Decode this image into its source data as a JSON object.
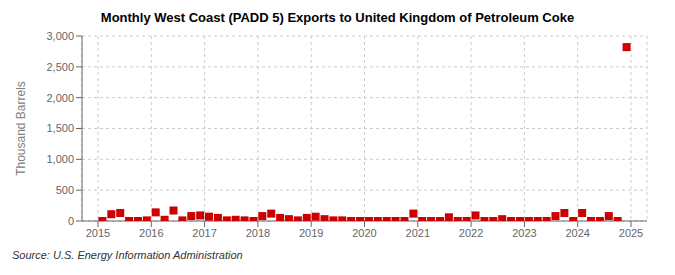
{
  "chart_data": {
    "type": "scatter",
    "title": "Monthly West Coast (PADD 5) Exports to United Kingdom of Petroleum Coke",
    "ylabel": "Thousand Barrels",
    "annotation": "Source: U.S. Energy Information Administration",
    "color": "#cc0000",
    "marker": "square",
    "grid": true,
    "xlim": [
      2014.7,
      2025.3
    ],
    "xticks": [
      2015,
      2016,
      2017,
      2018,
      2019,
      2020,
      2021,
      2022,
      2023,
      2024,
      2025
    ],
    "ylim": [
      0,
      3000
    ],
    "yticks": [
      0,
      500,
      {
        "value": 1000,
        "label": "1,000"
      },
      {
        "value": 1500,
        "label": "1,500"
      },
      {
        "value": 2000,
        "label": "2,000"
      },
      {
        "value": 2500,
        "label": "2,500"
      },
      {
        "value": 3000,
        "label": "3,000"
      }
    ],
    "x": [
      2015.083,
      2015.25,
      2015.417,
      2015.583,
      2015.75,
      2015.917,
      2016.083,
      2016.25,
      2016.417,
      2016.583,
      2016.75,
      2016.917,
      2017.083,
      2017.25,
      2017.417,
      2017.583,
      2017.75,
      2017.917,
      2018.083,
      2018.25,
      2018.417,
      2018.583,
      2018.75,
      2018.917,
      2019.083,
      2019.25,
      2019.417,
      2019.583,
      2019.75,
      2019.917,
      2020.083,
      2020.25,
      2020.417,
      2020.583,
      2020.75,
      2020.917,
      2021.083,
      2021.25,
      2021.417,
      2021.583,
      2021.75,
      2021.917,
      2022.083,
      2022.25,
      2022.417,
      2022.583,
      2022.75,
      2022.917,
      2023.083,
      2023.25,
      2023.417,
      2023.583,
      2023.75,
      2023.917,
      2024.083,
      2024.25,
      2024.417,
      2024.583,
      2024.75,
      2024.917
    ],
    "values": [
      0,
      110,
      130,
      0,
      0,
      10,
      140,
      20,
      170,
      10,
      80,
      90,
      70,
      50,
      10,
      20,
      10,
      0,
      80,
      120,
      50,
      30,
      10,
      50,
      70,
      30,
      10,
      10,
      0,
      0,
      0,
      0,
      0,
      0,
      0,
      120,
      0,
      0,
      0,
      60,
      0,
      0,
      90,
      0,
      0,
      30,
      0,
      0,
      0,
      0,
      0,
      80,
      130,
      0,
      130,
      0,
      0,
      80,
      0,
      2820
    ]
  }
}
